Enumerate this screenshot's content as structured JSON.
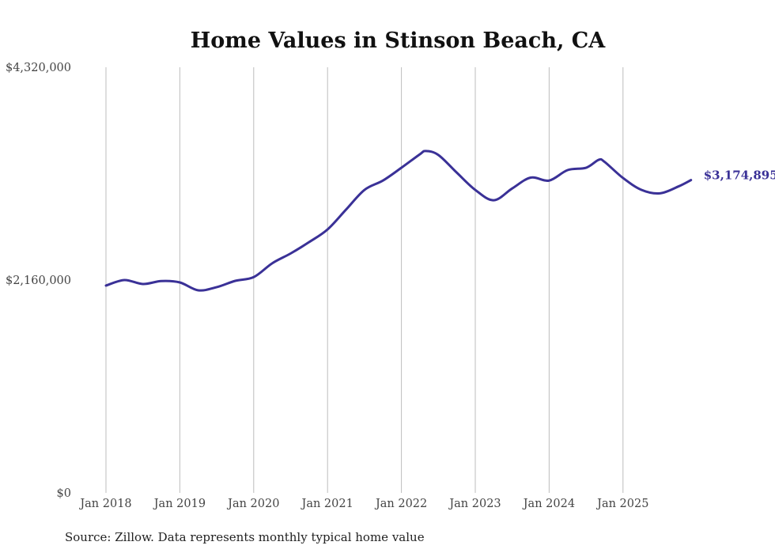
{
  "chart_data": {
    "type": "line",
    "title": "Home Values in Stinson Beach, CA",
    "xlabel": "",
    "ylabel": "",
    "ylim": [
      0,
      4320000
    ],
    "y_ticks": [
      {
        "value": 0,
        "label": "$0"
      },
      {
        "value": 2160000,
        "label": "$2,160,000"
      },
      {
        "value": 4320000,
        "label": "$4,320,000"
      }
    ],
    "x_ticks": [
      {
        "value": 2018.0,
        "label": "Jan 2018"
      },
      {
        "value": 2019.0,
        "label": "Jan 2019"
      },
      {
        "value": 2020.0,
        "label": "Jan 2020"
      },
      {
        "value": 2021.0,
        "label": "Jan 2021"
      },
      {
        "value": 2022.0,
        "label": "Jan 2022"
      },
      {
        "value": 2023.0,
        "label": "Jan 2023"
      },
      {
        "value": 2024.0,
        "label": "Jan 2024"
      },
      {
        "value": 2025.0,
        "label": "Jan 2025"
      }
    ],
    "xlim": [
      2018.0,
      2026.0
    ],
    "grid": "vertical",
    "series": [
      {
        "name": "Typical home value",
        "color": "#3a3197",
        "x": [
          2018.0,
          2018.25,
          2018.5,
          2018.75,
          2019.0,
          2019.25,
          2019.5,
          2019.75,
          2020.0,
          2020.25,
          2020.5,
          2020.75,
          2021.0,
          2021.25,
          2021.5,
          2021.75,
          2022.0,
          2022.25,
          2022.33,
          2022.5,
          2022.75,
          2023.0,
          2023.25,
          2023.5,
          2023.75,
          2024.0,
          2024.25,
          2024.5,
          2024.67,
          2024.75,
          2025.0,
          2025.25,
          2025.5,
          2025.75,
          2025.92
        ],
        "values": [
          2104000,
          2160000,
          2120000,
          2150000,
          2136000,
          2056000,
          2088000,
          2152000,
          2190000,
          2330000,
          2430000,
          2545000,
          2674000,
          2875000,
          3075000,
          3170000,
          3300000,
          3437000,
          3470000,
          3430000,
          3250000,
          3075000,
          2970000,
          3090000,
          3200000,
          3170000,
          3276000,
          3300000,
          3380000,
          3360000,
          3196000,
          3075000,
          3040000,
          3110000,
          3174895
        ]
      }
    ],
    "end_label": "$3,174,895",
    "source": "Source: Zillow. Data represents monthly typical home value"
  }
}
